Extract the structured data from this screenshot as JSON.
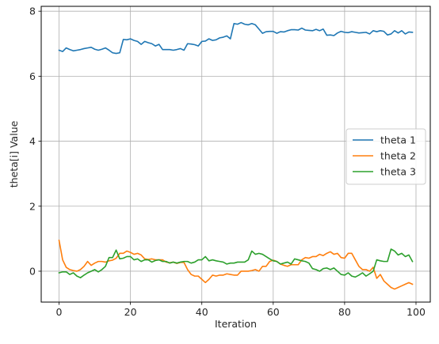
{
  "chart_data": {
    "type": "line",
    "xlabel": "Iteration",
    "ylabel": "theta[i] Value",
    "xlim": [
      -5,
      104
    ],
    "ylim": [
      -0.95,
      8.15
    ],
    "xticks": [
      0,
      20,
      40,
      60,
      80,
      100
    ],
    "yticks": [
      0,
      2,
      4,
      6,
      8
    ],
    "grid": true,
    "legend_position": "center-right",
    "x": [
      0,
      1,
      2,
      3,
      4,
      5,
      6,
      7,
      8,
      9,
      10,
      11,
      12,
      13,
      14,
      15,
      16,
      17,
      18,
      19,
      20,
      21,
      22,
      23,
      24,
      25,
      26,
      27,
      28,
      29,
      30,
      31,
      32,
      33,
      34,
      35,
      36,
      37,
      38,
      39,
      40,
      41,
      42,
      43,
      44,
      45,
      46,
      47,
      48,
      49,
      50,
      51,
      52,
      53,
      54,
      55,
      56,
      57,
      58,
      59,
      60,
      61,
      62,
      63,
      64,
      65,
      66,
      67,
      68,
      69,
      70,
      71,
      72,
      73,
      74,
      75,
      76,
      77,
      78,
      79,
      80,
      81,
      82,
      83,
      84,
      85,
      86,
      87,
      88,
      89,
      90,
      91,
      92,
      93,
      94,
      95,
      96,
      97,
      98,
      99
    ],
    "series": [
      {
        "name": "theta 1",
        "color": "#1f77b4",
        "values": [
          6.8,
          6.76,
          6.87,
          6.82,
          6.78,
          6.8,
          6.82,
          6.85,
          6.87,
          6.89,
          6.83,
          6.8,
          6.83,
          6.87,
          6.8,
          6.72,
          6.7,
          6.72,
          7.13,
          7.12,
          7.15,
          7.1,
          7.07,
          6.98,
          7.07,
          7.03,
          7.0,
          6.93,
          6.98,
          6.82,
          6.82,
          6.82,
          6.8,
          6.82,
          6.85,
          6.8,
          7.0,
          6.99,
          6.97,
          6.93,
          7.07,
          7.08,
          7.15,
          7.1,
          7.12,
          7.18,
          7.2,
          7.24,
          7.15,
          7.62,
          7.6,
          7.65,
          7.6,
          7.58,
          7.62,
          7.58,
          7.45,
          7.32,
          7.37,
          7.38,
          7.38,
          7.32,
          7.37,
          7.36,
          7.4,
          7.43,
          7.43,
          7.42,
          7.48,
          7.42,
          7.41,
          7.4,
          7.44,
          7.4,
          7.45,
          7.26,
          7.27,
          7.25,
          7.33,
          7.38,
          7.35,
          7.34,
          7.37,
          7.35,
          7.33,
          7.34,
          7.35,
          7.3,
          7.4,
          7.37,
          7.4,
          7.38,
          7.27,
          7.3,
          7.4,
          7.33,
          7.4,
          7.3,
          7.36,
          7.35
        ]
      },
      {
        "name": "theta 2",
        "color": "#ff7f0e",
        "values": [
          0.95,
          0.35,
          0.12,
          0.05,
          0.02,
          0.0,
          0.05,
          0.15,
          0.3,
          0.18,
          0.25,
          0.3,
          0.3,
          0.28,
          0.32,
          0.34,
          0.4,
          0.55,
          0.55,
          0.62,
          0.58,
          0.52,
          0.55,
          0.5,
          0.38,
          0.36,
          0.38,
          0.35,
          0.35,
          0.35,
          0.28,
          0.26,
          0.28,
          0.24,
          0.27,
          0.27,
          0.05,
          -0.1,
          -0.15,
          -0.15,
          -0.25,
          -0.35,
          -0.25,
          -0.12,
          -0.15,
          -0.12,
          -0.12,
          -0.08,
          -0.1,
          -0.12,
          -0.12,
          0.0,
          0.0,
          0.0,
          0.02,
          0.05,
          0.0,
          0.15,
          0.15,
          0.3,
          0.34,
          0.3,
          0.22,
          0.18,
          0.15,
          0.2,
          0.2,
          0.2,
          0.35,
          0.42,
          0.4,
          0.45,
          0.45,
          0.52,
          0.48,
          0.55,
          0.6,
          0.52,
          0.55,
          0.42,
          0.4,
          0.55,
          0.55,
          0.35,
          0.15,
          0.05,
          0.05,
          0.0,
          0.12,
          -0.22,
          -0.1,
          -0.3,
          -0.4,
          -0.5,
          -0.55,
          -0.5,
          -0.45,
          -0.4,
          -0.35,
          -0.4
        ]
      },
      {
        "name": "theta 3",
        "color": "#2ca02c",
        "values": [
          -0.05,
          -0.02,
          -0.02,
          -0.1,
          -0.05,
          -0.15,
          -0.2,
          -0.12,
          -0.05,
          0.0,
          0.05,
          -0.02,
          0.05,
          0.15,
          0.42,
          0.42,
          0.65,
          0.38,
          0.4,
          0.45,
          0.45,
          0.35,
          0.38,
          0.3,
          0.35,
          0.35,
          0.28,
          0.33,
          0.35,
          0.3,
          0.3,
          0.25,
          0.28,
          0.25,
          0.28,
          0.3,
          0.3,
          0.25,
          0.28,
          0.35,
          0.35,
          0.45,
          0.32,
          0.35,
          0.32,
          0.3,
          0.28,
          0.22,
          0.25,
          0.25,
          0.28,
          0.28,
          0.28,
          0.35,
          0.62,
          0.52,
          0.55,
          0.52,
          0.45,
          0.38,
          0.32,
          0.3,
          0.22,
          0.25,
          0.28,
          0.22,
          0.38,
          0.35,
          0.32,
          0.3,
          0.25,
          0.08,
          0.05,
          0.0,
          0.08,
          0.1,
          0.05,
          0.1,
          0.0,
          -0.1,
          -0.12,
          -0.05,
          -0.15,
          -0.18,
          -0.12,
          -0.05,
          -0.15,
          -0.08,
          0.0,
          0.35,
          0.32,
          0.3,
          0.3,
          0.68,
          0.62,
          0.5,
          0.55,
          0.45,
          0.5,
          0.3
        ]
      }
    ]
  }
}
